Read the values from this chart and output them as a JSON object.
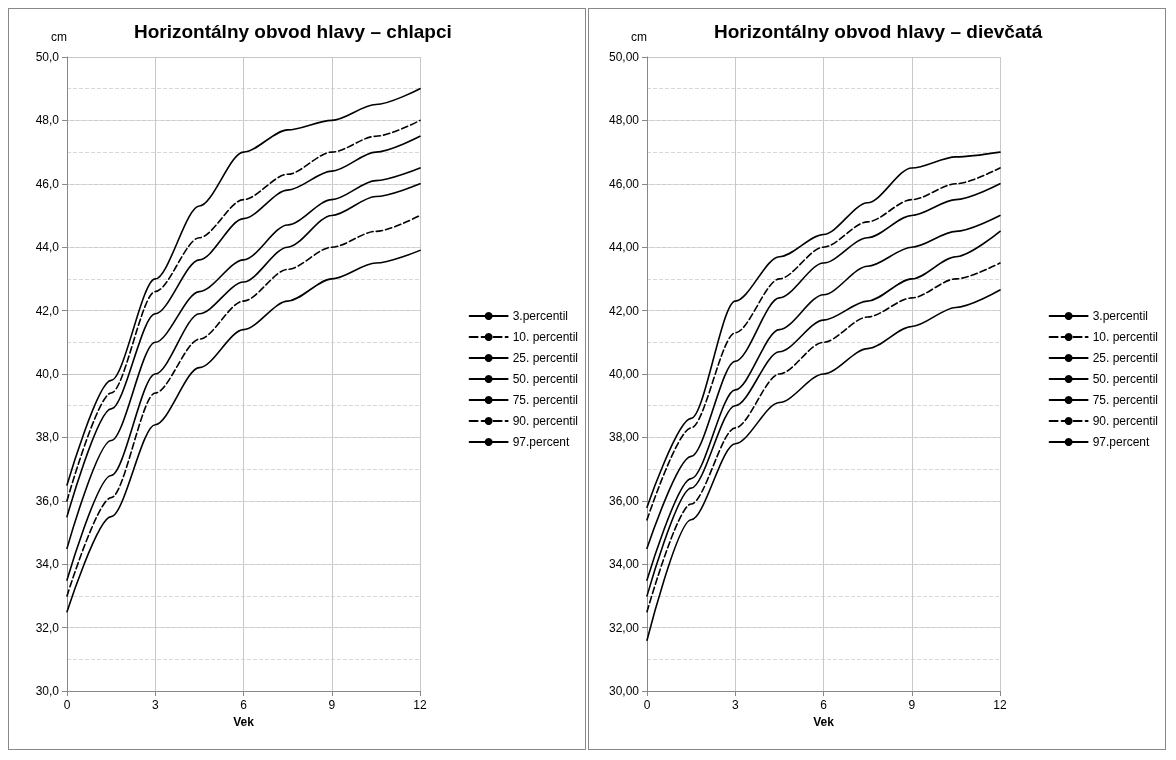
{
  "chart_data": [
    {
      "type": "line",
      "title": "Horizontálny obvod hlavy – chlapci",
      "ylabel": "cm",
      "xlabel": "Vek",
      "x": [
        0,
        1.5,
        3,
        4.5,
        6,
        7.5,
        9,
        10.5,
        12
      ],
      "xlim": [
        0,
        12
      ],
      "xticks": [
        0,
        3,
        6,
        9,
        12
      ],
      "ylim": [
        30,
        50
      ],
      "yticks": [
        {
          "value": 30,
          "label": "30,0"
        },
        {
          "value": 32,
          "label": "32,0"
        },
        {
          "value": 34,
          "label": "34,0"
        },
        {
          "value": 36,
          "label": "36,0"
        },
        {
          "value": 38,
          "label": "38,0"
        },
        {
          "value": 40,
          "label": "40,0"
        },
        {
          "value": 42,
          "label": "42,0"
        },
        {
          "value": 44,
          "label": "44,0"
        },
        {
          "value": 46,
          "label": "46,0"
        },
        {
          "value": 48,
          "label": "48,0"
        },
        {
          "value": 50,
          "label": "50,0"
        }
      ],
      "grid": true,
      "legend": "right",
      "marker": "none",
      "series": [
        {
          "name": "3.percentil",
          "color": "#000000",
          "line_style": "solid",
          "values": [
            32.5,
            35.5,
            38.4,
            40.2,
            41.4,
            42.3,
            43.0,
            43.5,
            43.9
          ]
        },
        {
          "name": "10. percentil",
          "color": "#000000",
          "line_style": "dashed",
          "values": [
            33.0,
            36.1,
            39.4,
            41.1,
            42.3,
            43.3,
            44.0,
            44.5,
            45.0
          ]
        },
        {
          "name": "25. percentil",
          "color": "#000000",
          "line_style": "solid",
          "values": [
            33.5,
            36.8,
            40.0,
            41.9,
            42.9,
            44.0,
            45.0,
            45.6,
            46.0
          ]
        },
        {
          "name": "50. percentil",
          "color": "#000000",
          "line_style": "solid",
          "values": [
            34.5,
            37.9,
            41.0,
            42.6,
            43.6,
            44.7,
            45.5,
            46.1,
            46.5
          ]
        },
        {
          "name": "75. percentil",
          "color": "#000000",
          "line_style": "solid",
          "values": [
            35.5,
            38.9,
            41.9,
            43.6,
            44.9,
            45.8,
            46.4,
            47.0,
            47.5
          ]
        },
        {
          "name": "90. percentil",
          "color": "#000000",
          "line_style": "dashed",
          "values": [
            36.0,
            39.4,
            42.6,
            44.3,
            45.5,
            46.3,
            47.0,
            47.5,
            48.0
          ]
        },
        {
          "name": "97.percent",
          "color": "#000000",
          "line_style": "solid",
          "values": [
            36.5,
            39.8,
            43.0,
            45.3,
            47.0,
            47.7,
            48.0,
            48.5,
            49.0
          ]
        }
      ]
    },
    {
      "type": "line",
      "title": "Horizontálny obvod hlavy – dievčatá",
      "ylabel": "cm",
      "xlabel": "Vek",
      "x": [
        0,
        1.5,
        3,
        4.5,
        6,
        7.5,
        9,
        10.5,
        12
      ],
      "xlim": [
        0,
        12
      ],
      "xticks": [
        0,
        3,
        6,
        9,
        12
      ],
      "ylim": [
        30,
        50
      ],
      "yticks": [
        {
          "value": 30,
          "label": "30,00"
        },
        {
          "value": 32,
          "label": "32,00"
        },
        {
          "value": 34,
          "label": "34,00"
        },
        {
          "value": 36,
          "label": "36,00"
        },
        {
          "value": 38,
          "label": "38,00"
        },
        {
          "value": 40,
          "label": "40,00"
        },
        {
          "value": 42,
          "label": "42,00"
        },
        {
          "value": 44,
          "label": "44,00"
        },
        {
          "value": 46,
          "label": "46,00"
        },
        {
          "value": 48,
          "label": "48,00"
        },
        {
          "value": 50,
          "label": "50,00"
        }
      ],
      "grid": true,
      "legend": "right",
      "marker": "none",
      "series": [
        {
          "name": "3.percentil",
          "color": "#000000",
          "line_style": "solid",
          "values": [
            31.6,
            35.4,
            37.8,
            39.1,
            40.0,
            40.8,
            41.5,
            42.1,
            42.65
          ]
        },
        {
          "name": "10. percentil",
          "color": "#000000",
          "line_style": "dashed",
          "values": [
            32.5,
            35.9,
            38.3,
            40.0,
            41.0,
            41.8,
            42.4,
            43.0,
            43.5
          ]
        },
        {
          "name": "25. percentil",
          "color": "#000000",
          "line_style": "solid",
          "values": [
            33.0,
            36.4,
            39.0,
            40.7,
            41.7,
            42.3,
            43.0,
            43.7,
            44.5
          ]
        },
        {
          "name": "50. percentil",
          "color": "#000000",
          "line_style": "solid",
          "values": [
            33.5,
            36.7,
            39.5,
            41.4,
            42.5,
            43.4,
            44.0,
            44.5,
            45.0
          ]
        },
        {
          "name": "75. percentil",
          "color": "#000000",
          "line_style": "solid",
          "values": [
            34.5,
            37.4,
            40.4,
            42.4,
            43.5,
            44.3,
            45.0,
            45.5,
            46.0
          ]
        },
        {
          "name": "90. percentil",
          "color": "#000000",
          "line_style": "dashed",
          "values": [
            35.4,
            38.3,
            41.3,
            43.0,
            44.0,
            44.8,
            45.5,
            46.0,
            46.5
          ]
        },
        {
          "name": "97.percent",
          "color": "#000000",
          "line_style": "solid",
          "values": [
            35.8,
            38.6,
            42.3,
            43.7,
            44.4,
            45.4,
            46.5,
            46.85,
            47.0
          ]
        }
      ]
    }
  ]
}
